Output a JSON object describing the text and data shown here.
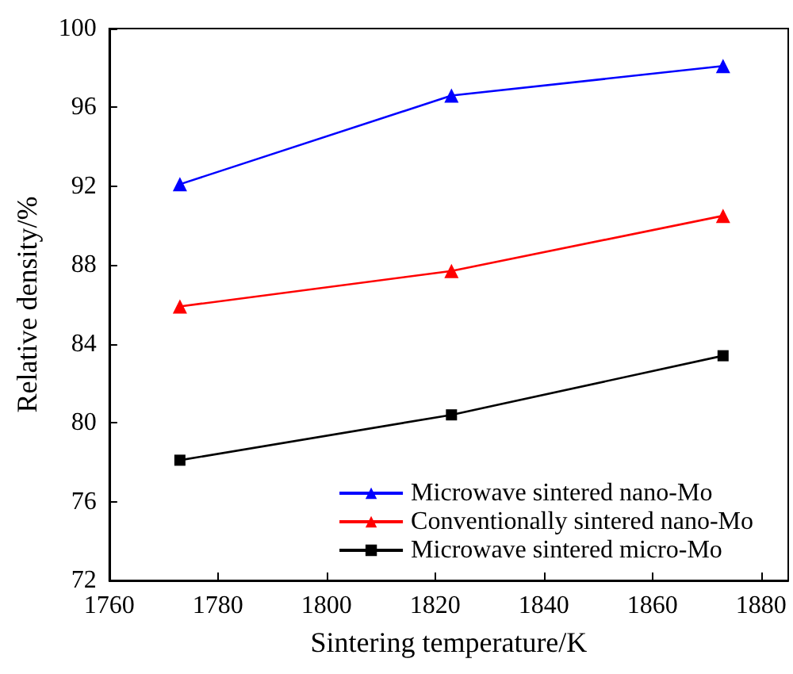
{
  "chart_data": {
    "type": "line",
    "xlabel": "Sintering temperature/K",
    "ylabel": "Relative density/%",
    "x": [
      1773,
      1823,
      1873
    ],
    "series": [
      {
        "name": "Microwave sintered nano-Mo",
        "color": "#0000ff",
        "marker": "triangle",
        "values": [
          92.1,
          96.6,
          98.1
        ]
      },
      {
        "name": "Conventionally sintered nano-Mo",
        "color": "#ff0000",
        "marker": "triangle",
        "values": [
          85.9,
          87.7,
          90.5
        ]
      },
      {
        "name": "Microwave sintered micro-Mo",
        "color": "#000000",
        "marker": "square",
        "values": [
          78.1,
          80.4,
          83.4
        ]
      }
    ],
    "xlim": [
      1760,
      1885
    ],
    "xticks": [
      1760,
      1780,
      1800,
      1820,
      1840,
      1860,
      1880
    ],
    "ylim": [
      72,
      100
    ],
    "yticks": [
      72,
      76,
      80,
      84,
      88,
      92,
      96,
      100
    ],
    "grid": false,
    "legend": "bottom right",
    "line_style": "solid"
  }
}
